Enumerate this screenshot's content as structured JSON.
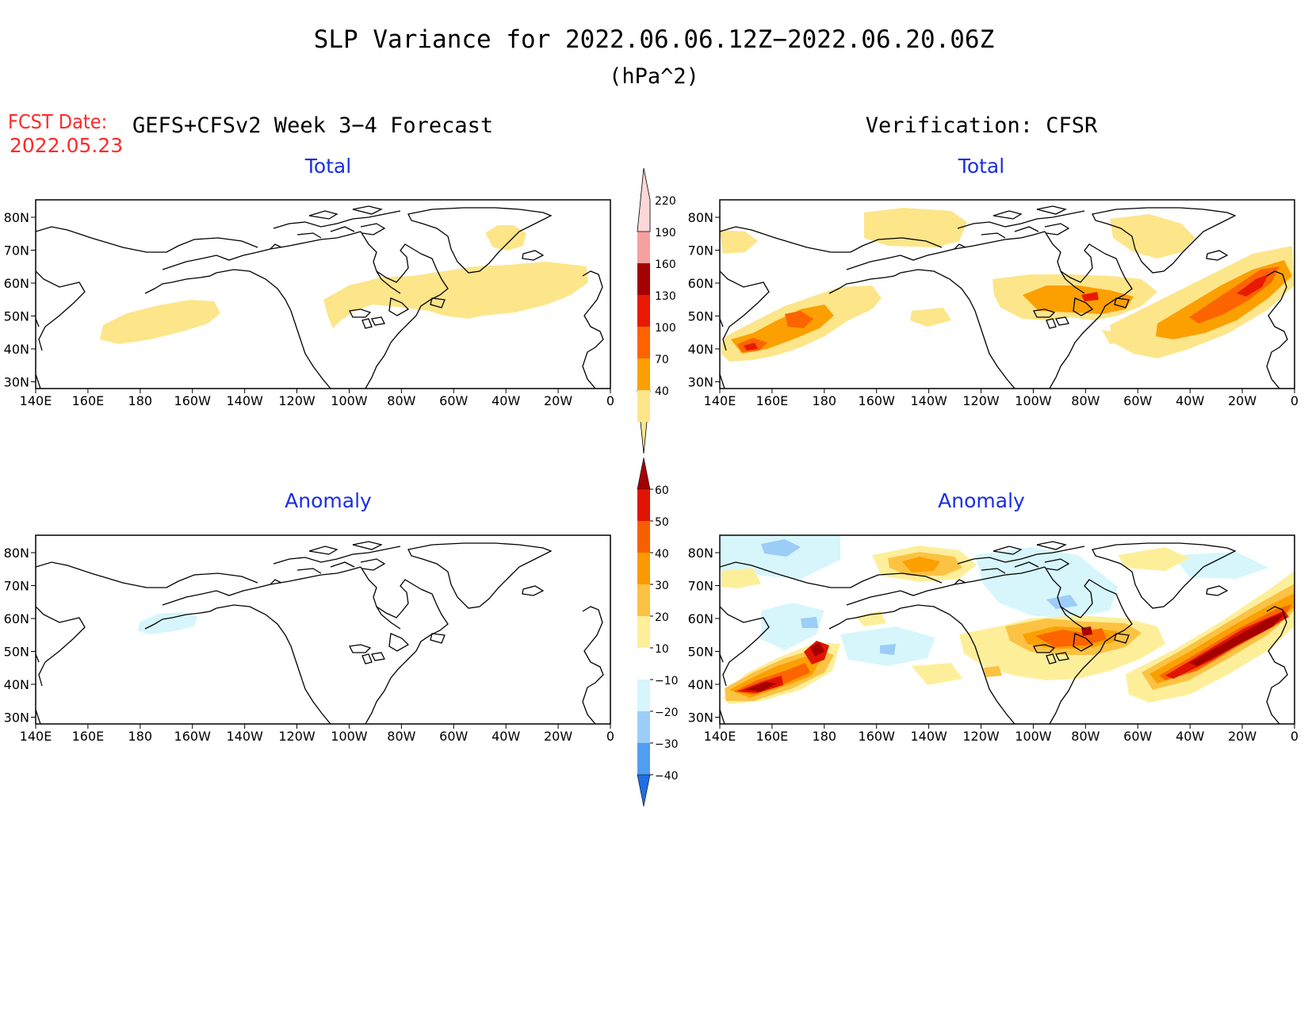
{
  "title": "SLP Variance for 2022.06.06.12Z−2022.06.20.06Z",
  "units": "(hPa^2)",
  "fcst_date_label": "FCST Date:",
  "fcst_date_value": "2022.05.23",
  "left_header": "GEFS+CFSv2 Week 3−4 Forecast",
  "right_header": "Verification: CFSR",
  "panels": {
    "top_left_title": "Total",
    "top_right_title": "Total",
    "bottom_left_title": "Anomaly",
    "bottom_right_title": "Anomaly"
  },
  "lat_labels": [
    "80N",
    "70N",
    "60N",
    "50N",
    "40N",
    "30N"
  ],
  "lon_labels": [
    "140E",
    "160E",
    "180",
    "160W",
    "140W",
    "120W",
    "100W",
    "80W",
    "60W",
    "40W",
    "20W",
    "0"
  ],
  "total_colorbar": {
    "labels": [
      "40",
      "70",
      "100",
      "130",
      "160",
      "190",
      "220"
    ],
    "colors": [
      "#fde58a",
      "#fba000",
      "#fc6400",
      "#e81a00",
      "#a50000",
      "#f6a0a0",
      "#fcd8d8"
    ]
  },
  "anomaly_colorbar": {
    "labels": [
      "60",
      "50",
      "40",
      "30",
      "20",
      "10",
      "−10",
      "−20",
      "−30",
      "−40"
    ],
    "colors": [
      "#a50000",
      "#e01400",
      "#f76000",
      "#fb9a00",
      "#fcc243",
      "#fdef9a",
      "#ffffff",
      "#d6f6fc",
      "#9ccdf6",
      "#4f9ef0",
      "#1f6fe6"
    ]
  },
  "colors": {
    "title_red": "#ff2a2a",
    "panel_title_blue": "#1a2ee6"
  }
}
